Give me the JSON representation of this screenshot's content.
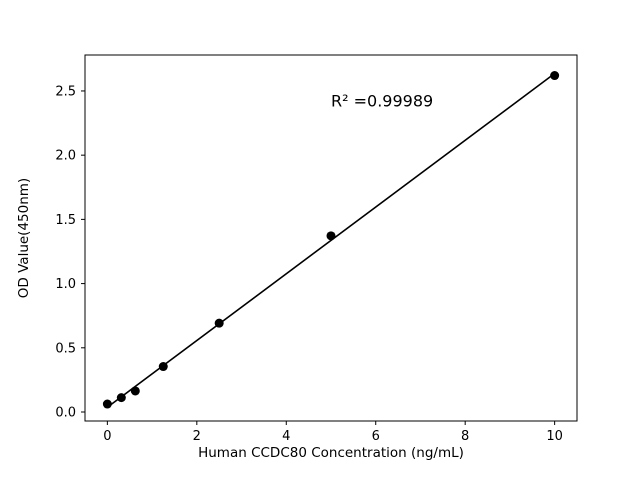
{
  "chart_data": {
    "type": "scatter",
    "title": "",
    "xlabel": "Human CCDC80 Concentration (ng/mL)",
    "ylabel": "OD Value(450nm)",
    "annotation": {
      "text": "R² =0.99989",
      "x": 5.0,
      "y": 2.38
    },
    "x": [
      0,
      0.3125,
      0.625,
      1.25,
      2.5,
      5,
      10
    ],
    "y": [
      0.062,
      0.112,
      0.164,
      0.354,
      0.692,
      1.372,
      2.62
    ],
    "xlim": [
      -0.5,
      10.5
    ],
    "ylim": [
      -0.07,
      2.78
    ],
    "xticks": [
      0,
      2,
      4,
      6,
      8,
      10
    ],
    "xticklabels": [
      "0",
      "2",
      "4",
      "6",
      "8",
      "10"
    ],
    "yticks": [
      0.0,
      0.5,
      1.0,
      1.5,
      2.0,
      2.5
    ],
    "yticklabels": [
      "0.0",
      "0.5",
      "1.0",
      "1.5",
      "2.0",
      "2.5"
    ],
    "marker_color": "#000000",
    "line_color": "#000000",
    "grid": false,
    "legend": "none"
  }
}
